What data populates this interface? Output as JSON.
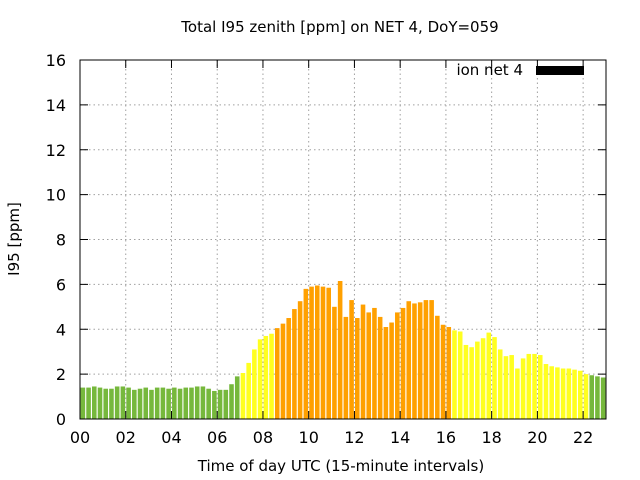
{
  "chart_data": {
    "type": "bar",
    "title": "Total I95 zenith [ppm] on NET 4, DoY=059",
    "xlabel": "Time of day UTC (15-minute intervals)",
    "ylabel": "I95 [ppm]",
    "ylim": [
      0,
      16
    ],
    "xlim": [
      0,
      23
    ],
    "yticks": [
      "0",
      "2",
      "4",
      "6",
      "8",
      "10",
      "12",
      "14",
      "16"
    ],
    "xticks": [
      "00",
      "02",
      "04",
      "06",
      "08",
      "10",
      "12",
      "14",
      "16",
      "18",
      "20",
      "22"
    ],
    "grid": true,
    "legend": {
      "label": "ion net 4",
      "color": "#000000",
      "placement": "top-right"
    },
    "bar_interval_hours": 0.25,
    "colors": {
      "low": "#76b83c",
      "mid": "#ffff20",
      "high": "#ffa000"
    },
    "thresholds": {
      "low_max": 2,
      "high_min": 4
    },
    "values": [
      1.4,
      1.4,
      1.45,
      1.4,
      1.35,
      1.35,
      1.45,
      1.45,
      1.4,
      1.3,
      1.35,
      1.4,
      1.3,
      1.4,
      1.4,
      1.35,
      1.4,
      1.35,
      1.4,
      1.4,
      1.45,
      1.45,
      1.35,
      1.25,
      1.3,
      1.3,
      1.55,
      1.9,
      2.05,
      2.5,
      3.1,
      3.55,
      3.7,
      3.8,
      4.05,
      4.25,
      4.5,
      4.9,
      5.25,
      5.8,
      5.9,
      5.95,
      5.9,
      5.85,
      5.0,
      6.15,
      4.55,
      5.3,
      4.5,
      5.1,
      4.75,
      4.95,
      4.55,
      4.1,
      4.3,
      4.75,
      4.95,
      5.25,
      5.15,
      5.2,
      5.3,
      5.3,
      4.6,
      4.2,
      4.1,
      3.95,
      3.9,
      3.3,
      3.2,
      3.45,
      3.6,
      3.85,
      3.65,
      3.1,
      2.8,
      2.85,
      2.25,
      2.7,
      2.9,
      2.9,
      2.85,
      2.45,
      2.35,
      2.3,
      2.25,
      2.25,
      2.2,
      2.15,
      2.0,
      1.95,
      1.9,
      1.85
    ]
  }
}
